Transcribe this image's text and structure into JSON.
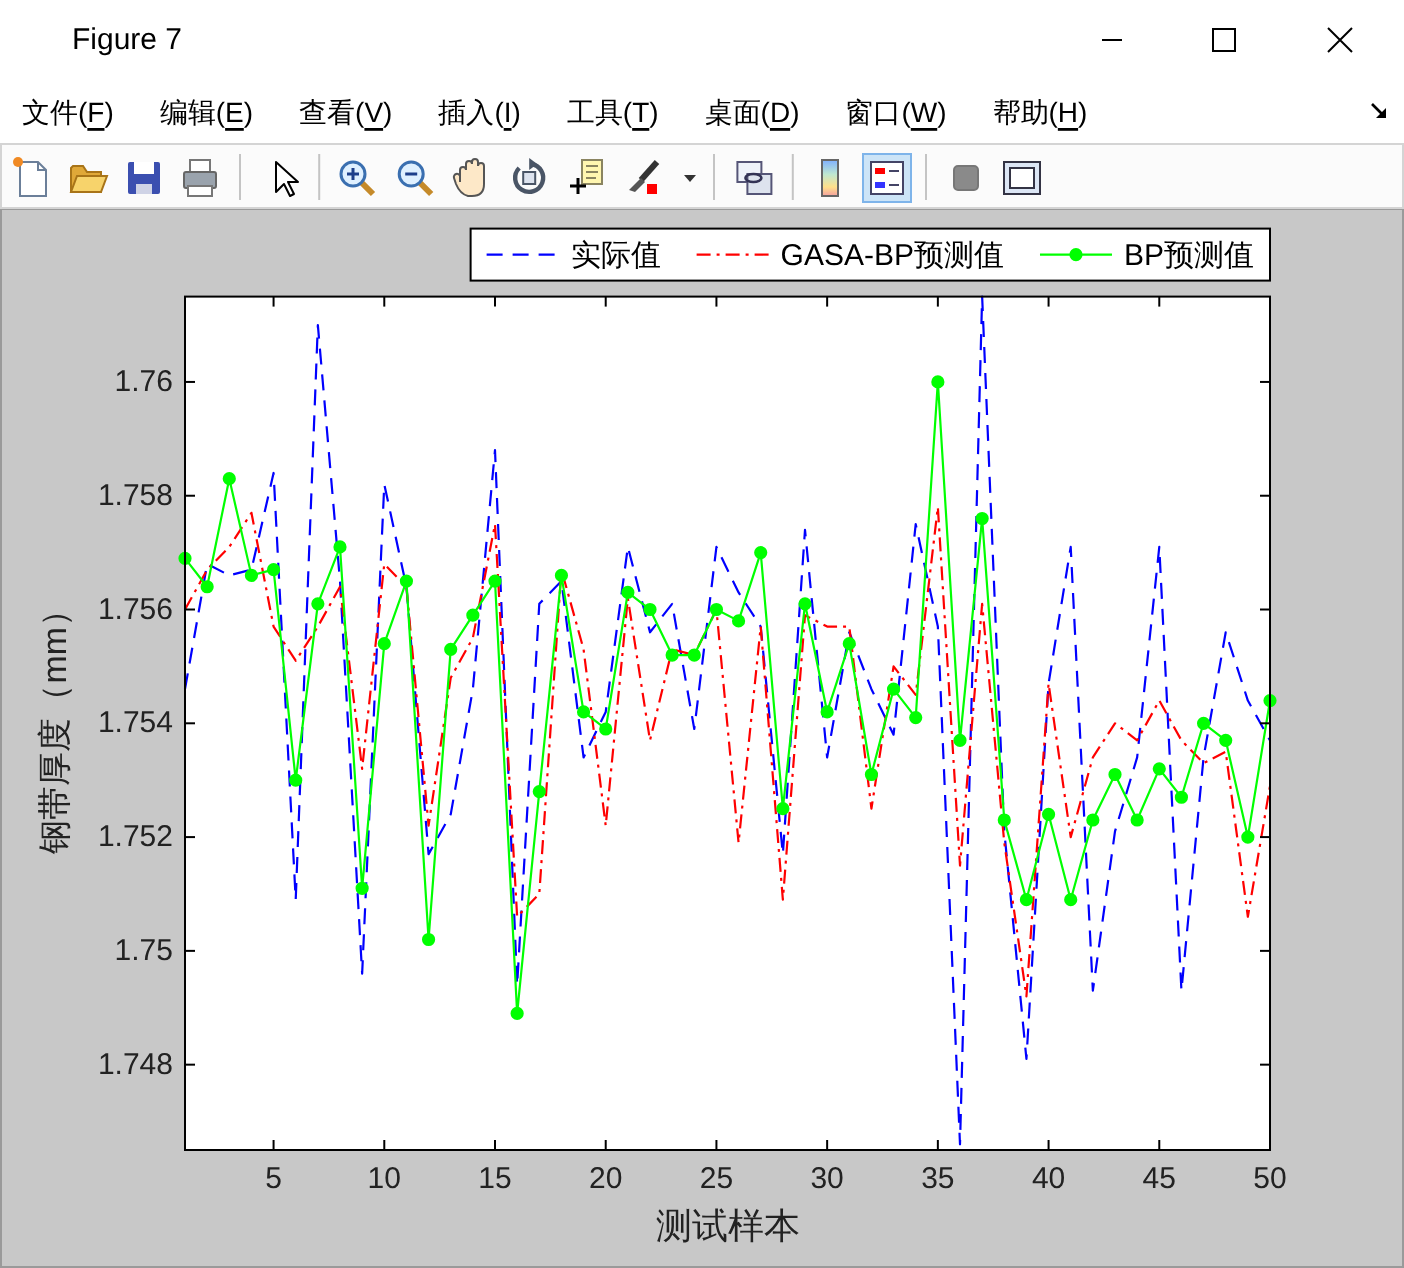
{
  "chart_data": {
    "type": "line",
    "x": [
      1,
      2,
      3,
      4,
      5,
      6,
      7,
      8,
      9,
      10,
      11,
      12,
      13,
      14,
      15,
      16,
      17,
      18,
      19,
      20,
      21,
      22,
      23,
      24,
      25,
      26,
      27,
      28,
      29,
      30,
      31,
      32,
      33,
      34,
      35,
      36,
      37,
      38,
      39,
      40,
      41,
      42,
      43,
      44,
      45,
      46,
      47,
      48,
      49,
      50
    ],
    "xlim": [
      1,
      50
    ],
    "xticks": [
      5,
      10,
      15,
      20,
      25,
      30,
      35,
      40,
      45,
      50
    ],
    "ylim": [
      1.7465,
      1.7615
    ],
    "yticks": [
      1.748,
      1.75,
      1.752,
      1.754,
      1.756,
      1.758,
      1.76
    ],
    "xlabel": "测试样本",
    "ylabel": "钢带厚度（mm）",
    "legend": "top right",
    "annotations": [
      "Figure 7",
      "文件(F)",
      "编辑(E)",
      "查看(V)",
      "插入(I)",
      "工具(T)",
      "桌面(D)",
      "窗口(W)",
      "帮助(H)"
    ],
    "series": [
      {
        "name": "实际值",
        "color": "#0000ff",
        "line_style": "dashed",
        "values": [
          1.7546,
          1.7568,
          1.7566,
          1.7567,
          1.7584,
          1.7509,
          1.761,
          1.7565,
          1.7496,
          1.7582,
          1.7564,
          1.7517,
          1.7524,
          1.7546,
          1.7588,
          1.7494,
          1.7561,
          1.7565,
          1.7534,
          1.7542,
          1.7571,
          1.7556,
          1.7561,
          1.7539,
          1.7571,
          1.7563,
          1.7557,
          1.7517,
          1.7574,
          1.7534,
          1.7556,
          1.7546,
          1.7538,
          1.7575,
          1.7557,
          1.7466,
          1.7615,
          1.7521,
          1.7481,
          1.7547,
          1.7571,
          1.7493,
          1.7521,
          1.7534,
          1.7571,
          1.7493,
          1.7534,
          1.7556,
          1.7544,
          1.7537
        ]
      },
      {
        "name": "GASA-BP预测值",
        "color": "#ff0000",
        "line_style": "dashdot",
        "values": [
          1.756,
          1.7567,
          1.7571,
          1.7577,
          1.7557,
          1.7551,
          1.7557,
          1.7564,
          1.7532,
          1.7568,
          1.7564,
          1.7522,
          1.7548,
          1.7555,
          1.7575,
          1.7506,
          1.751,
          1.7567,
          1.7553,
          1.7522,
          1.7562,
          1.7537,
          1.7553,
          1.7552,
          1.756,
          1.7519,
          1.7557,
          1.7509,
          1.7559,
          1.7557,
          1.7557,
          1.7525,
          1.755,
          1.7545,
          1.7578,
          1.7515,
          1.7561,
          1.7519,
          1.7492,
          1.7547,
          1.752,
          1.7534,
          1.754,
          1.7537,
          1.7544,
          1.7537,
          1.7533,
          1.7535,
          1.7506,
          1.7529
        ]
      },
      {
        "name": "BP预测值",
        "color": "#00ff00",
        "line_style": "solid",
        "marker": "circle",
        "values": [
          1.7569,
          1.7564,
          1.7583,
          1.7566,
          1.7567,
          1.753,
          1.7561,
          1.7571,
          1.7511,
          1.7554,
          1.7565,
          1.7502,
          1.7553,
          1.7559,
          1.7565,
          1.7489,
          1.7528,
          1.7566,
          1.7542,
          1.7539,
          1.7563,
          1.756,
          1.7552,
          1.7552,
          1.756,
          1.7558,
          1.757,
          1.7525,
          1.7561,
          1.7542,
          1.7554,
          1.7531,
          1.7546,
          1.7541,
          1.76,
          1.7537,
          1.7576,
          1.7523,
          1.7509,
          1.7524,
          1.7509,
          1.7523,
          1.7531,
          1.7523,
          1.7532,
          1.7527,
          1.754,
          1.7537,
          1.752,
          1.7544
        ]
      }
    ]
  }
}
